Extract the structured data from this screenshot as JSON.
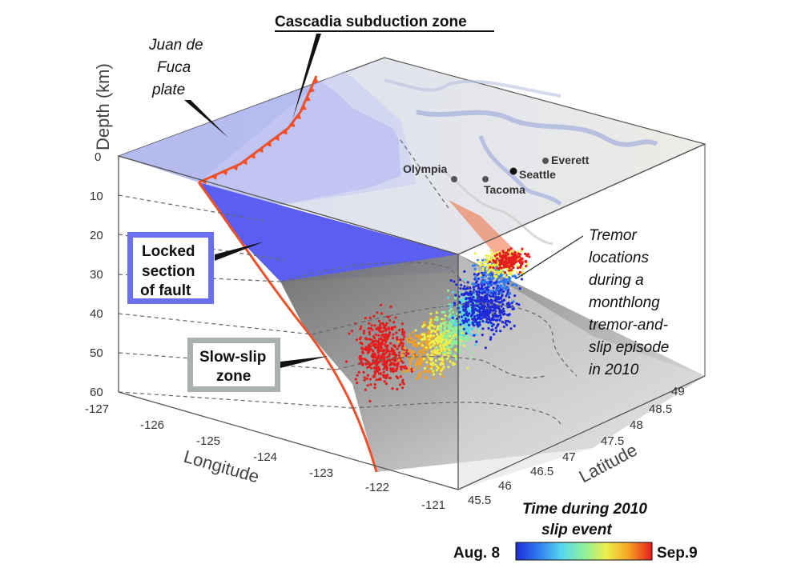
{
  "title": "Cascadia subduction zone",
  "plate_label": [
    "Juan de",
    "Fuca",
    "plate"
  ],
  "depth_axis": {
    "label": "Depth (km)",
    "ticks": [
      "0",
      "10",
      "20",
      "30",
      "40",
      "50",
      "60"
    ]
  },
  "longitude_axis": {
    "label": "Longitude",
    "ticks": [
      "-127",
      "-126",
      "-125",
      "-124",
      "-123",
      "-122",
      "-121"
    ]
  },
  "latitude_axis": {
    "label": "Latitude",
    "ticks": [
      "45.5",
      "46",
      "46.5",
      "47",
      "47.5",
      "48",
      "48.5",
      "49"
    ]
  },
  "cities": [
    {
      "name": "Olympia"
    },
    {
      "name": "Tacoma"
    },
    {
      "name": "Seattle"
    },
    {
      "name": "Everett"
    }
  ],
  "locked_label": [
    "Locked",
    "section",
    "of fault"
  ],
  "slowslip_label": [
    "Slow-slip",
    "zone"
  ],
  "tremor_label": [
    "Tremor",
    "locations",
    "during a",
    "monthlong",
    "tremor-and-",
    "slip episode",
    "in 2010"
  ],
  "colorbar": {
    "title": [
      "Time during 2010",
      "slip event"
    ],
    "start": "Aug. 8",
    "end": "Sep.9",
    "colors": [
      "#1f2bd6",
      "#2f7cf0",
      "#55d6f0",
      "#8ef09a",
      "#eef04a",
      "#f5a023",
      "#e41d1d"
    ]
  },
  "colors": {
    "plate_blue": "#b9bff0",
    "locked_blue": "#5a5ff0",
    "fault_red": "#f0502a",
    "slab_gray": "#8a8a8a",
    "box_border": "#5b5ff0",
    "slow_border": "#9aa0a0"
  }
}
